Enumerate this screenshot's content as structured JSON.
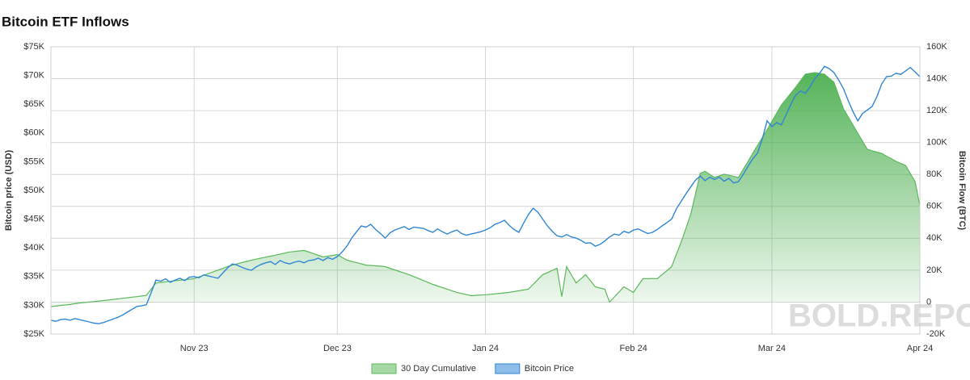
{
  "chart_data": {
    "type": "line",
    "title": "Bitcoin ETF Inflows",
    "watermark": "BOLD.REPORT",
    "y_label": "Bitcoin price (USD)",
    "y2_label": "Bitcoin Flow (BTC)",
    "categories": [
      null,
      null,
      null,
      null,
      null,
      null,
      null,
      null,
      null,
      null,
      null,
      null,
      null,
      null,
      null,
      null,
      null,
      null,
      null,
      null,
      null,
      null,
      null,
      null,
      null,
      null,
      null,
      null,
      null,
      null,
      "Nov 23",
      null,
      null,
      null,
      null,
      null,
      null,
      null,
      null,
      null,
      null,
      null,
      null,
      null,
      null,
      null,
      null,
      null,
      null,
      null,
      null,
      null,
      null,
      null,
      null,
      null,
      null,
      null,
      null,
      null,
      "Dec 23",
      null,
      null,
      null,
      null,
      null,
      null,
      null,
      null,
      null,
      null,
      null,
      null,
      null,
      null,
      null,
      null,
      null,
      null,
      null,
      null,
      null,
      null,
      null,
      null,
      null,
      null,
      null,
      null,
      null,
      null,
      "Jan 24",
      null,
      null,
      null,
      null,
      null,
      null,
      null,
      null,
      null,
      null,
      null,
      null,
      null,
      null,
      null,
      null,
      null,
      null,
      null,
      null,
      null,
      null,
      null,
      null,
      null,
      null,
      null,
      null,
      null,
      null,
      "Feb 24",
      null,
      null,
      null,
      null,
      null,
      null,
      null,
      null,
      null,
      null,
      null,
      null,
      null,
      null,
      null,
      null,
      null,
      null,
      null,
      null,
      null,
      null,
      null,
      null,
      null,
      null,
      null,
      null,
      "Mar 24",
      null,
      null,
      null,
      null,
      null,
      null,
      null,
      null,
      null,
      null,
      null,
      null,
      null,
      null,
      null,
      null,
      null,
      null,
      null,
      null,
      null,
      null,
      null,
      null,
      null,
      null,
      null,
      null,
      null,
      null,
      "Apr 24"
    ],
    "series": [
      {
        "name": "30 Day Cumulative",
        "type": "area",
        "axis": "y2",
        "color": "#5cb85c",
        "values": [
          -2800,
          -2500,
          -2100,
          -1800,
          -1500,
          -1000,
          -600,
          -300,
          0,
          300,
          700,
          1000,
          1300,
          1700,
          2000,
          2400,
          2700,
          3100,
          3400,
          3800,
          4200,
          8100,
          12000,
          12300,
          12700,
          13000,
          13400,
          13700,
          14000,
          14400,
          14700,
          15800,
          16800,
          17900,
          19000,
          20100,
          21100,
          22200,
          23200,
          24000,
          24800,
          25500,
          26300,
          26900,
          27600,
          28200,
          28800,
          29400,
          30100,
          30700,
          31400,
          31700,
          32100,
          32400,
          31400,
          30400,
          29300,
          28300,
          28800,
          29300,
          29800,
          28000,
          26300,
          25500,
          24800,
          24000,
          23200,
          23000,
          22700,
          22500,
          22200,
          21200,
          20200,
          19200,
          18200,
          17200,
          16000,
          14800,
          13500,
          12300,
          11100,
          10100,
          9100,
          8100,
          7100,
          6100,
          5400,
          4700,
          4000,
          4200,
          4400,
          4600,
          4900,
          5200,
          5500,
          5800,
          6100,
          6600,
          7100,
          7600,
          8100,
          11100,
          14200,
          17200,
          18500,
          19900,
          21200,
          3400,
          22200,
          17100,
          12000,
          14600,
          17200,
          13400,
          9600,
          8800,
          8100,
          0,
          3200,
          6400,
          9600,
          7800,
          6100,
          10400,
          14700,
          14700,
          14800,
          14700,
          17200,
          19700,
          22200,
          30000,
          37700,
          46300,
          55000,
          67800,
          80700,
          82000,
          80000,
          78100,
          79100,
          80100,
          79500,
          78800,
          78100,
          83200,
          88200,
          93300,
          98200,
          103100,
          108000,
          113200,
          118400,
          123600,
          127300,
          131000,
          134700,
          138700,
          142800,
          143300,
          143800,
          143300,
          142800,
          140300,
          137800,
          129400,
          121100,
          116000,
          110900,
          105800,
          100800,
          95700,
          94900,
          94000,
          93200,
          91500,
          89900,
          88200,
          86900,
          85600,
          80500,
          75500,
          60300
        ]
      },
      {
        "name": "Bitcoin Price",
        "type": "line",
        "axis": "y",
        "color": "#2f86d6",
        "values": [
          27400,
          27200,
          27500,
          27600,
          27400,
          27700,
          27500,
          27300,
          27100,
          26900,
          26800,
          27000,
          27300,
          27600,
          27900,
          28300,
          28800,
          29300,
          29800,
          29900,
          30100,
          32200,
          34400,
          34200,
          34600,
          34000,
          34400,
          34700,
          34300,
          34900,
          35000,
          34800,
          35300,
          35100,
          34900,
          34700,
          35600,
          36500,
          37200,
          37000,
          36600,
          36300,
          36100,
          36700,
          37100,
          37400,
          37600,
          37100,
          37800,
          37400,
          37200,
          37500,
          37700,
          37400,
          37800,
          37900,
          38200,
          37800,
          38300,
          38000,
          38500,
          39300,
          40300,
          41700,
          42800,
          43800,
          43600,
          44100,
          43200,
          42500,
          41700,
          42600,
          43100,
          43400,
          43700,
          43200,
          43600,
          43500,
          43400,
          43000,
          42700,
          43300,
          42800,
          42400,
          42800,
          43100,
          42500,
          42200,
          42400,
          42600,
          42800,
          43100,
          43500,
          44100,
          44400,
          44800,
          43900,
          43200,
          42700,
          44300,
          45800,
          46900,
          46200,
          45000,
          43800,
          42900,
          42100,
          41900,
          42300,
          41900,
          41700,
          41300,
          40800,
          40900,
          40300,
          40600,
          41200,
          41900,
          42400,
          42200,
          42900,
          42600,
          43100,
          43300,
          42900,
          42500,
          42700,
          43200,
          43800,
          44400,
          45000,
          46800,
          48100,
          49400,
          50600,
          51800,
          52500,
          51700,
          52300,
          51900,
          52300,
          51600,
          52100,
          51300,
          51500,
          52800,
          54200,
          55500,
          56500,
          59000,
          62100,
          61100,
          61800,
          61400,
          63200,
          65000,
          66600,
          67300,
          66900,
          68000,
          69500,
          70400,
          71600,
          71200,
          70500,
          69200,
          67700,
          65600,
          63700,
          62100,
          63400,
          64000,
          64600,
          66300,
          68500,
          69800,
          69900,
          70400,
          70200,
          70800,
          71400,
          70600,
          69800
        ]
      }
    ],
    "ylim": [
      25000,
      75000
    ],
    "yticks": [
      {
        "value": 25000,
        "label": "$25K"
      },
      {
        "value": 30000,
        "label": "$30K"
      },
      {
        "value": 35000,
        "label": "$35K"
      },
      {
        "value": 40000,
        "label": "$40K"
      },
      {
        "value": 45000,
        "label": "$45K"
      },
      {
        "value": 50000,
        "label": "$50K"
      },
      {
        "value": 55000,
        "label": "$55K"
      },
      {
        "value": 60000,
        "label": "$60K"
      },
      {
        "value": 65000,
        "label": "$65K"
      },
      {
        "value": 70000,
        "label": "$70K"
      },
      {
        "value": 75000,
        "label": "$75K"
      }
    ],
    "y2lim": [
      -20000,
      160000
    ],
    "y2ticks": [
      {
        "value": -20000,
        "label": "-20K"
      },
      0,
      {
        "value": 20000,
        "label": "20K"
      },
      {
        "value": 40000,
        "label": "40K"
      },
      {
        "value": 60000,
        "label": "60K"
      },
      {
        "value": 80000,
        "label": "80K"
      },
      {
        "value": 100000,
        "label": "100K"
      },
      {
        "value": 120000,
        "label": "120K"
      },
      {
        "value": 140000,
        "label": "140K"
      },
      {
        "value": 160000,
        "label": "160K"
      }
    ],
    "grid": true,
    "legend": "bottom"
  }
}
